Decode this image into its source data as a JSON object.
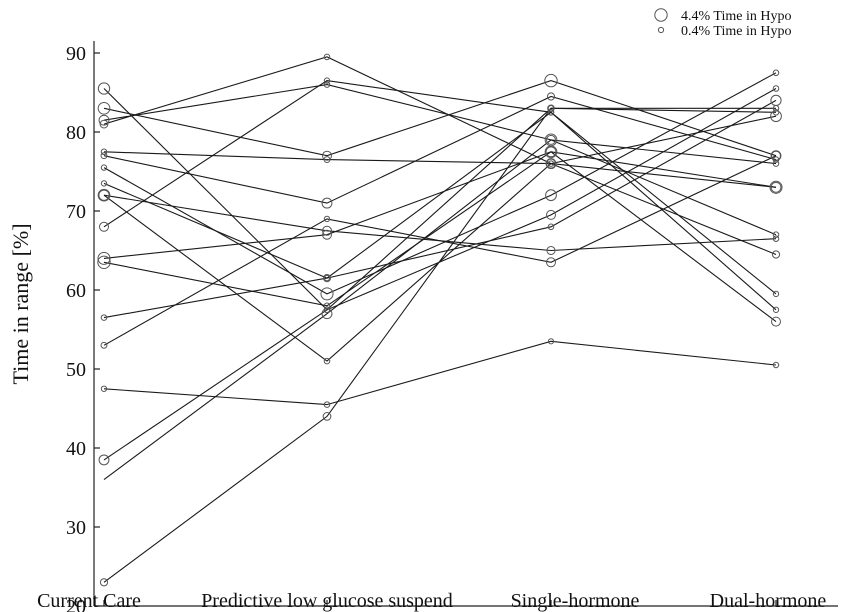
{
  "chart_data": {
    "type": "line",
    "title": "",
    "xlabel": "",
    "ylabel": "Time in range [%]",
    "categories": [
      "Current Care",
      "Predictive low glucose suspend",
      "Single-hormone",
      "Dual-hormone"
    ],
    "ylim": [
      20,
      90
    ],
    "yticks": [
      "20",
      "30",
      "40",
      "50",
      "60",
      "70",
      "80",
      "90"
    ],
    "grid": false,
    "legend_position": "top-right",
    "legend": [
      {
        "label": "4.4% Time in Hypo",
        "hypo": 4.4
      },
      {
        "label": "0.4% Time in Hypo",
        "hypo": 0.4
      }
    ],
    "series": [
      {
        "values": [
          85.5,
          57.5,
          83.0,
          83.0
        ],
        "hypo": [
          3.8,
          0.6,
          1.2,
          0.6
        ]
      },
      {
        "values": [
          83.0,
          77.0,
          86.5,
          77.0
        ],
        "hypo": [
          4.0,
          2.5,
          4.4,
          2.5
        ]
      },
      {
        "values": [
          81.5,
          86.0,
          79.0,
          67.0
        ],
        "hypo": [
          3.0,
          0.6,
          4.0,
          0.6
        ]
      },
      {
        "values": [
          81.0,
          89.5,
          76.0,
          64.5
        ],
        "hypo": [
          1.8,
          0.6,
          2.5,
          1.5
        ]
      },
      {
        "values": [
          77.5,
          76.5,
          76.0,
          73.0
        ],
        "hypo": [
          0.6,
          0.8,
          0.6,
          3.0
        ]
      },
      {
        "values": [
          77.0,
          71.0,
          84.5,
          76.5
        ],
        "hypo": [
          0.8,
          3.0,
          1.5,
          0.6
        ]
      },
      {
        "values": [
          75.5,
          59.5,
          72.0,
          87.5
        ],
        "hypo": [
          0.5,
          4.2,
          3.5,
          0.6
        ]
      },
      {
        "values": [
          73.5,
          61.5,
          82.5,
          59.5
        ],
        "hypo": [
          0.5,
          1.5,
          0.6,
          0.5
        ]
      },
      {
        "values": [
          72.0,
          67.5,
          65.0,
          66.5
        ],
        "hypo": [
          4.0,
          2.5,
          2.0,
          0.6
        ]
      },
      {
        "values": [
          72.0,
          51.0,
          76.0,
          82.0
        ],
        "hypo": [
          3.2,
          0.6,
          3.0,
          3.5
        ]
      },
      {
        "values": [
          68.0,
          86.5,
          82.5,
          57.5
        ],
        "hypo": [
          2.5,
          0.5,
          0.6,
          0.5
        ]
      },
      {
        "values": [
          64.0,
          67.0,
          77.5,
          73.0
        ],
        "hypo": [
          4.2,
          2.5,
          4.0,
          4.2
        ]
      },
      {
        "values": [
          63.5,
          58.0,
          77.5,
          56.0
        ],
        "hypo": [
          4.4,
          0.6,
          3.0,
          2.5
        ]
      },
      {
        "values": [
          56.5,
          61.5,
          68.0,
          84.0
        ],
        "hypo": [
          0.6,
          0.5,
          0.6,
          3.2
        ]
      },
      {
        "values": [
          53.0,
          69.0,
          63.5,
          77.0
        ],
        "hypo": [
          0.8,
          0.5,
          2.5,
          3.0
        ]
      },
      {
        "values": [
          47.5,
          45.5,
          53.5,
          50.5
        ],
        "hypo": [
          0.5,
          0.6,
          0.4,
          0.5
        ]
      },
      {
        "values": [
          38.5,
          57.5,
          69.5,
          85.5
        ],
        "hypo": [
          3.0,
          0.6,
          2.5,
          0.6
        ]
      },
      {
        "values": [
          36.0,
          57.0,
          79.0,
          76.0
        ],
        "hypo": [
          0.0,
          3.0,
          2.5,
          0.6
        ]
      },
      {
        "values": [
          23.0,
          44.0,
          83.0,
          82.5
        ],
        "hypo": [
          1.5,
          1.8,
          0.6,
          0.6
        ]
      }
    ]
  }
}
